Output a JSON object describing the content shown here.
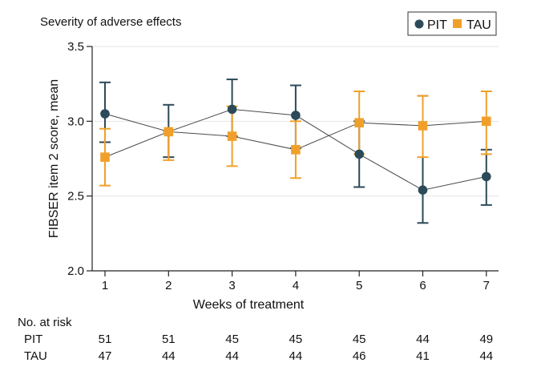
{
  "chart_data": {
    "type": "line",
    "title": "Severity of adverse effects",
    "xlabel": "Weeks of treatment",
    "ylabel": "FIBSER item 2 score, mean",
    "x": [
      1,
      2,
      3,
      4,
      5,
      6,
      7
    ],
    "x_ticks": [
      "1",
      "2",
      "3",
      "4",
      "5",
      "6",
      "7"
    ],
    "ylim": [
      2.0,
      3.5
    ],
    "y_ticks": [
      "2.0",
      "2.5",
      "3.0",
      "3.5"
    ],
    "grid": true,
    "legend_position": "top-right",
    "series": [
      {
        "name": "PIT",
        "marker": "circle",
        "color": "#2c4a57",
        "values": [
          3.05,
          2.93,
          3.08,
          3.04,
          2.78,
          2.54,
          2.63
        ],
        "error_low": [
          2.86,
          2.76,
          2.9,
          2.82,
          2.56,
          2.32,
          2.44
        ],
        "error_high": [
          3.26,
          3.11,
          3.28,
          3.24,
          3.0,
          3.17,
          2.81
        ]
      },
      {
        "name": "TAU",
        "marker": "square",
        "color": "#f0a02a",
        "values": [
          2.76,
          2.93,
          2.9,
          2.81,
          2.99,
          2.97,
          3.0
        ],
        "error_low": [
          2.57,
          2.74,
          2.7,
          2.62,
          2.78,
          2.76,
          2.78
        ],
        "error_high": [
          2.95,
          2.93,
          3.1,
          3.0,
          3.2,
          3.17,
          3.2
        ]
      }
    ],
    "risk_table": {
      "header": "No. at risk",
      "rows": [
        {
          "label": "PIT",
          "values": [
            "51",
            "51",
            "45",
            "45",
            "45",
            "44",
            "49"
          ]
        },
        {
          "label": "TAU",
          "values": [
            "47",
            "44",
            "44",
            "44",
            "46",
            "41",
            "44"
          ]
        }
      ]
    }
  }
}
